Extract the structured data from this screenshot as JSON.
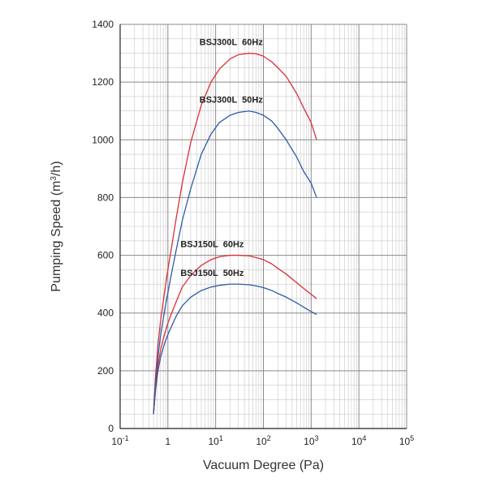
{
  "chart_data": {
    "type": "line",
    "xlabel": "Vacuum Degree (Pa)",
    "ylabel_text": "Pumping Speed (m",
    "ylabel_sup": "3",
    "ylabel_end": "/h)",
    "x_scale": "log",
    "xlim": [
      0.1,
      100000
    ],
    "ylim": [
      0,
      1400
    ],
    "y_ticks": [
      "0",
      "200",
      "400",
      "600",
      "800",
      "1000",
      "1200",
      "1400"
    ],
    "x_ticks": [
      {
        "base": "10",
        "exp": "-1"
      },
      {
        "base": "1",
        "exp": ""
      },
      {
        "base": "10",
        "exp": "1"
      },
      {
        "base": "10",
        "exp": "2"
      },
      {
        "base": "10",
        "exp": "3"
      },
      {
        "base": "10",
        "exp": "4"
      },
      {
        "base": "10",
        "exp": "5"
      }
    ],
    "grid": true,
    "series": [
      {
        "name": "BSJ300L  60Hz",
        "color": "#d9303a",
        "x": [
          0.5,
          0.55,
          0.62,
          0.7,
          0.8,
          0.9,
          1.0,
          1.2,
          1.5,
          2,
          3,
          5,
          8,
          12,
          20,
          30,
          50,
          70,
          100,
          150,
          200,
          300,
          500,
          700,
          1000,
          1300
        ],
        "y": [
          50,
          180,
          290,
          370,
          440,
          500,
          550,
          630,
          730,
          850,
          990,
          1120,
          1200,
          1245,
          1280,
          1295,
          1300,
          1298,
          1290,
          1270,
          1250,
          1220,
          1160,
          1110,
          1060,
          1000
        ]
      },
      {
        "name": "BSJ300L  50Hz",
        "color": "#2f5aa8",
        "x": [
          0.5,
          0.55,
          0.62,
          0.7,
          0.8,
          0.9,
          1.0,
          1.2,
          1.5,
          2,
          3,
          5,
          8,
          12,
          20,
          30,
          50,
          70,
          100,
          150,
          200,
          300,
          500,
          700,
          1000,
          1300
        ],
        "y": [
          50,
          160,
          250,
          320,
          380,
          430,
          470,
          540,
          620,
          720,
          830,
          950,
          1020,
          1060,
          1085,
          1095,
          1100,
          1095,
          1085,
          1065,
          1040,
          1000,
          940,
          890,
          850,
          800
        ]
      },
      {
        "name": "BSJ150L  60Hz",
        "color": "#d9303a",
        "x": [
          0.5,
          0.55,
          0.62,
          0.7,
          0.8,
          0.9,
          1.0,
          1.2,
          1.5,
          2,
          3,
          5,
          8,
          12,
          20,
          30,
          50,
          70,
          100,
          150,
          200,
          300,
          500,
          700,
          1000,
          1300
        ],
        "y": [
          50,
          140,
          220,
          270,
          310,
          340,
          365,
          400,
          440,
          490,
          530,
          565,
          585,
          595,
          600,
          600,
          598,
          592,
          585,
          570,
          555,
          535,
          505,
          485,
          465,
          450
        ]
      },
      {
        "name": "BSJ150L  50Hz",
        "color": "#2f5aa8",
        "x": [
          0.5,
          0.55,
          0.62,
          0.7,
          0.8,
          0.9,
          1.0,
          1.2,
          1.5,
          2,
          3,
          5,
          8,
          12,
          20,
          30,
          50,
          70,
          100,
          150,
          200,
          300,
          500,
          700,
          1000,
          1300
        ],
        "y": [
          50,
          130,
          200,
          245,
          280,
          305,
          325,
          355,
          390,
          425,
          455,
          478,
          490,
          496,
          500,
          500,
          498,
          494,
          488,
          478,
          468,
          455,
          435,
          420,
          405,
          395
        ]
      }
    ]
  }
}
